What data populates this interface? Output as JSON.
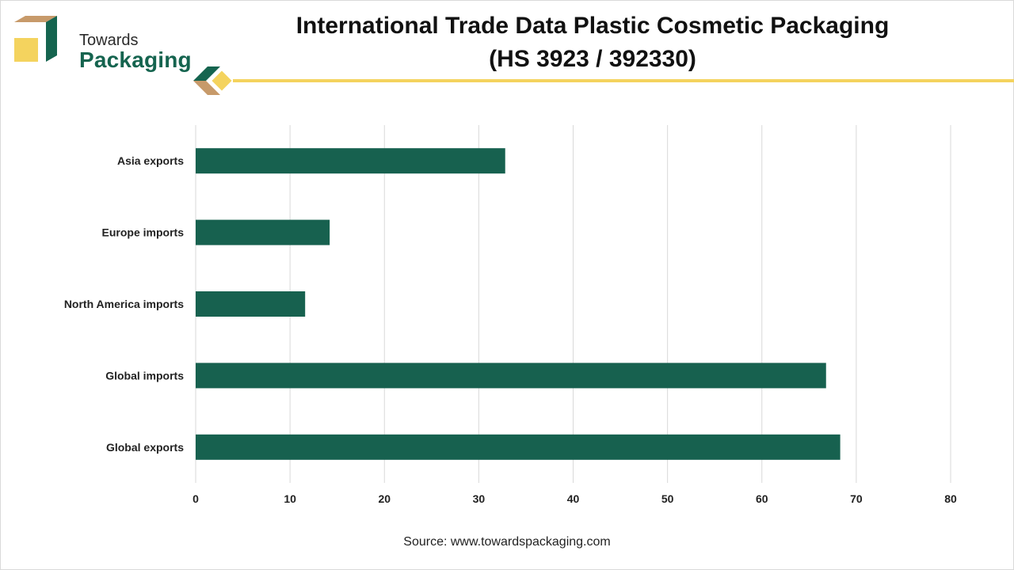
{
  "brand": {
    "line1": "Towards",
    "line2": "Packaging"
  },
  "title": {
    "line1": "International Trade Data Plastic Cosmetic Packaging",
    "line2": "(HS 3923 / 392330)"
  },
  "colors": {
    "bar": "#17614f",
    "grid": "#d9d9d9",
    "accent_yellow": "#f4d35e",
    "accent_brown": "#c79a6a",
    "brand_green": "#15644f"
  },
  "chart_data": {
    "type": "bar",
    "orientation": "horizontal",
    "categories": [
      "Asia exports",
      "Europe imports",
      "North America imports",
      "Global imports",
      "Global exports"
    ],
    "values": [
      32.8,
      14.2,
      11.6,
      66.8,
      68.3
    ],
    "xlim": [
      0,
      80
    ],
    "xticks": [
      0,
      10,
      20,
      30,
      40,
      50,
      60,
      70,
      80
    ],
    "grid": true,
    "title": "International Trade Data Plastic Cosmetic Packaging (HS 3923 / 392330)",
    "xlabel": "",
    "ylabel": ""
  },
  "source": "Source: www.towardspackaging.com"
}
